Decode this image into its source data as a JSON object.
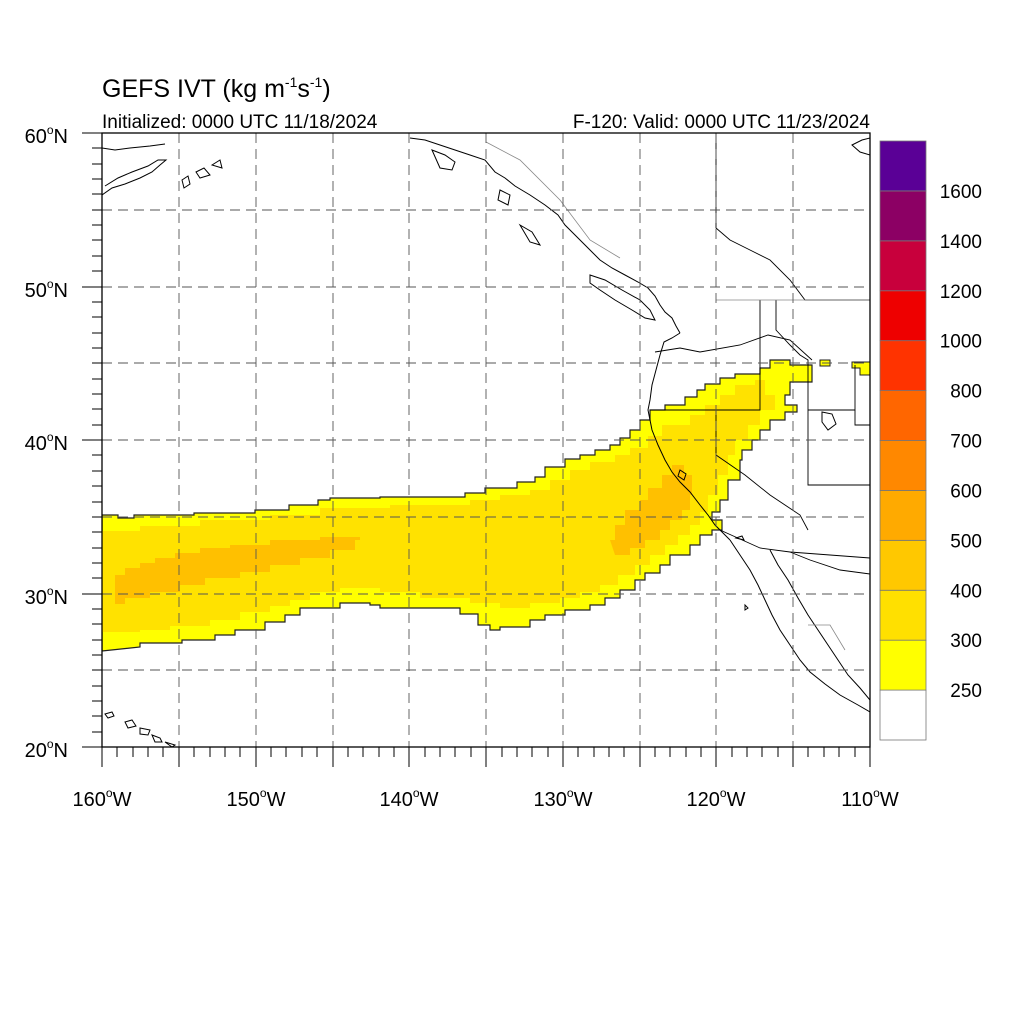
{
  "title": {
    "main": "GEFS IVT (kg m",
    "sup1": "-1",
    "mid": "s",
    "sup2": "-1",
    "close": ")"
  },
  "subtitle_left": "Initialized: 0000 UTC 11/18/2024",
  "subtitle_right": "F-120: Valid: 0000 UTC 11/23/2024",
  "map": {
    "lon_range": [
      -160,
      -110
    ],
    "lat_range": [
      20,
      60
    ],
    "lon_ticks": [
      {
        "deg": "160",
        "hemi": "W"
      },
      {
        "deg": "150",
        "hemi": "W"
      },
      {
        "deg": "140",
        "hemi": "W"
      },
      {
        "deg": "130",
        "hemi": "W"
      },
      {
        "deg": "120",
        "hemi": "W"
      },
      {
        "deg": "110",
        "hemi": "W"
      }
    ],
    "lat_ticks": [
      {
        "deg": "20",
        "hemi": "N"
      },
      {
        "deg": "30",
        "hemi": "N"
      },
      {
        "deg": "40",
        "hemi": "N"
      },
      {
        "deg": "50",
        "hemi": "N"
      },
      {
        "deg": "60",
        "hemi": "N"
      }
    ],
    "gridlines": "dashed every 5 degrees"
  },
  "colorbar": {
    "labels": [
      "250",
      "300",
      "400",
      "500",
      "600",
      "700",
      "800",
      "1000",
      "1200",
      "1400",
      "1600"
    ],
    "colors": [
      "#ffffff",
      "#ffff00",
      "#ffe000",
      "#ffc800",
      "#ffaa00",
      "#ff8800",
      "#ff6600",
      "#ff3300",
      "#ee0000",
      "#c8003c",
      "#8c0064",
      "#5a0096"
    ]
  },
  "ivt_field": {
    "units": "kg m-1 s-1",
    "shaded_threshold": 250,
    "core_max_range": "400-500",
    "core_location": "near 34N 124W and 31N 150-157W"
  }
}
